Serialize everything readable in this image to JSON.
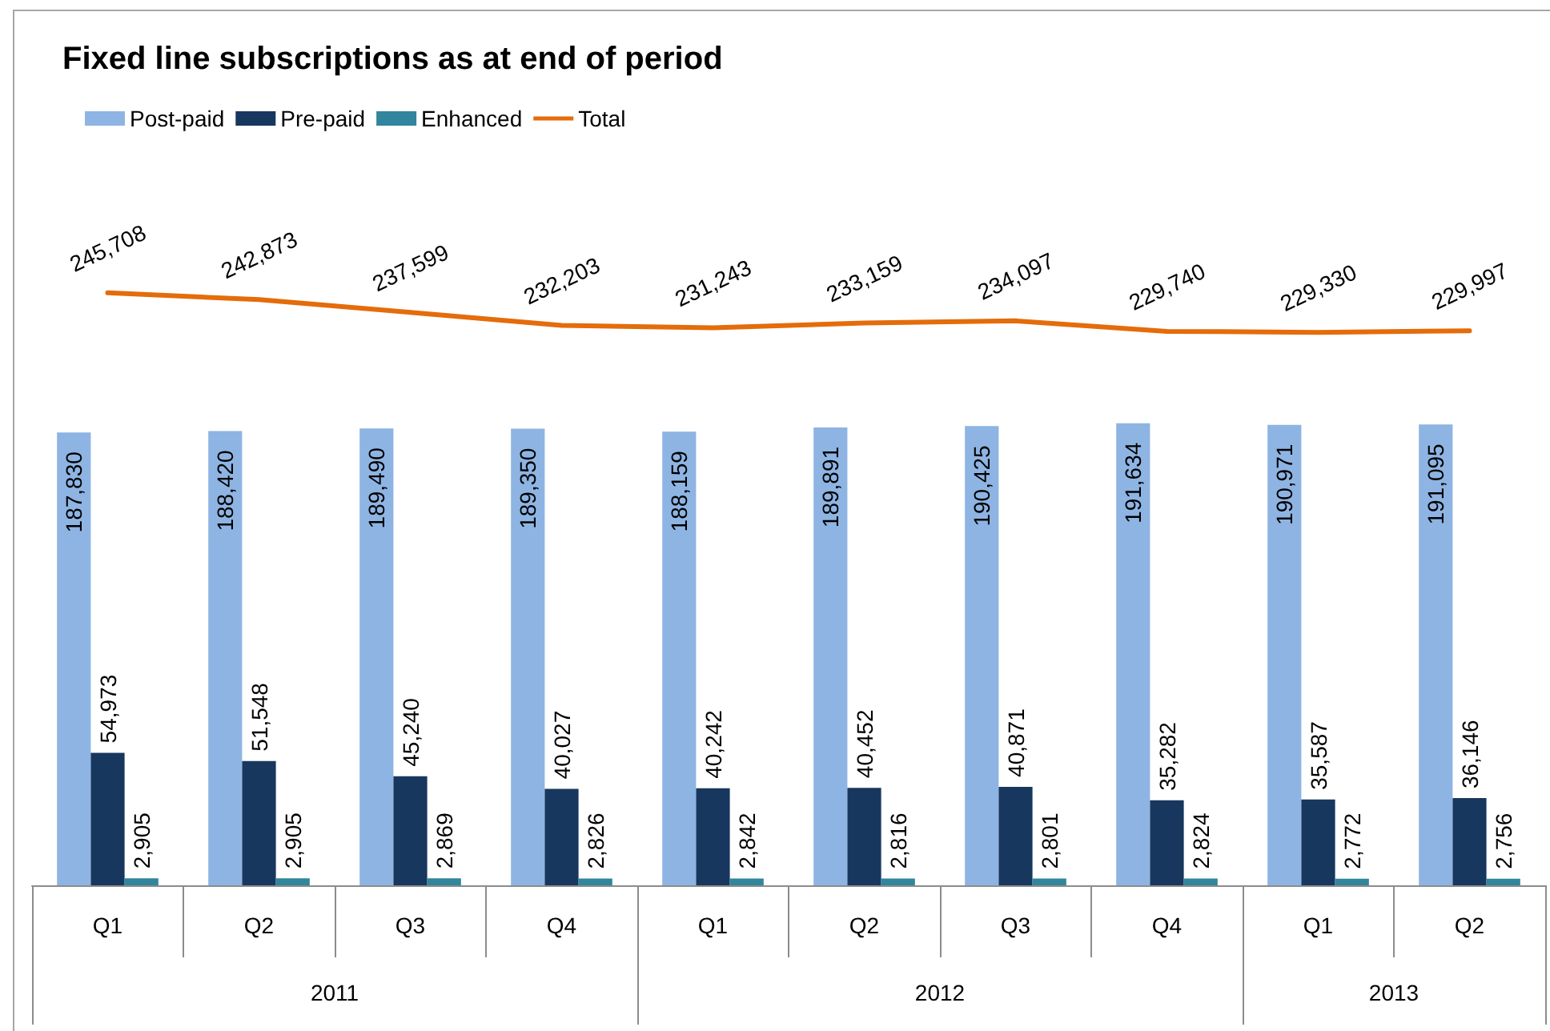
{
  "chart_data": {
    "type": "bar",
    "title": "Fixed line subscriptions as at end of period",
    "categories": [
      "Q1",
      "Q2",
      "Q3",
      "Q4",
      "Q1",
      "Q2",
      "Q3",
      "Q4",
      "Q1",
      "Q2"
    ],
    "series": [
      {
        "name": "Post-paid",
        "color": "#8eb4e3",
        "values": [
          187830,
          188420,
          189490,
          189350,
          188159,
          189891,
          190425,
          191634,
          190971,
          191095
        ],
        "value_labels": [
          "187,830",
          "188,420",
          "189,490",
          "189,350",
          "188,159",
          "189,891",
          "190,425",
          "191,634",
          "190,971",
          "191,095"
        ]
      },
      {
        "name": "Pre-paid",
        "color": "#17375e",
        "values": [
          54973,
          51548,
          45240,
          40027,
          40242,
          40452,
          40871,
          35282,
          35587,
          36146
        ],
        "value_labels": [
          "54,973",
          "51,548",
          "45,240",
          "40,027",
          "40,242",
          "40,452",
          "40,871",
          "35,282",
          "35,587",
          "36,146"
        ]
      },
      {
        "name": "Enhanced",
        "color": "#31859c",
        "values": [
          2905,
          2905,
          2869,
          2826,
          2842,
          2816,
          2801,
          2824,
          2772,
          2756
        ],
        "value_labels": [
          "2,905",
          "2,905",
          "2,869",
          "2,826",
          "2,842",
          "2,816",
          "2,801",
          "2,824",
          "2,772",
          "2,756"
        ]
      },
      {
        "name": "Total",
        "type": "line",
        "color": "#e46c0a",
        "values": [
          245708,
          242873,
          237599,
          232203,
          231243,
          233159,
          234097,
          229740,
          229330,
          229997
        ],
        "value_labels": [
          "245,708",
          "242,873",
          "237,599",
          "232,203",
          "231,243",
          "233,159",
          "234,097",
          "229,740",
          "229,330",
          "229,997"
        ]
      }
    ],
    "annotations": [
      "2011",
      "2012",
      "2013"
    ],
    "legend": "top left",
    "tick_labels": "x"
  }
}
